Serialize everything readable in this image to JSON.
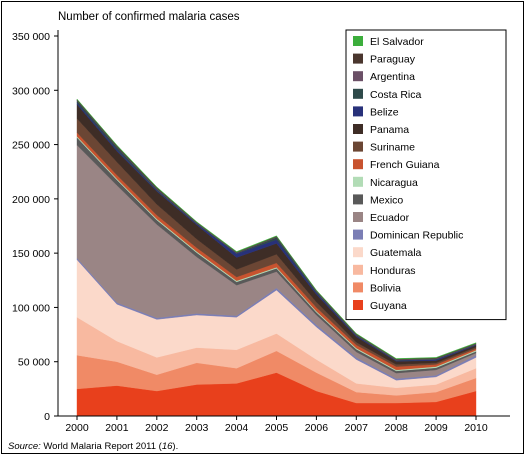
{
  "chart_data": {
    "type": "area",
    "stacked": true,
    "ylabel": "Number of confirmed malaria cases",
    "source_prefix": "Source:",
    "source_text": " World Malaria Report 2011 (",
    "source_ref": "16",
    "source_suffix": ").",
    "ylim": [
      0,
      350000
    ],
    "y_ticks": [
      0,
      50000,
      100000,
      150000,
      200000,
      250000,
      300000,
      350000
    ],
    "y_tick_labels": [
      "0",
      "50 000",
      "100 000",
      "150 000",
      "200 000",
      "250 000",
      "300 000",
      "350 000"
    ],
    "categories": [
      "2000",
      "2001",
      "2002",
      "2003",
      "2004",
      "2005",
      "2006",
      "2007",
      "2008",
      "2009",
      "2010"
    ],
    "legend_position": "top-right",
    "series": [
      {
        "name": "Guyana",
        "color": "#e8401c",
        "values": [
          25000,
          28000,
          23000,
          29000,
          30000,
          40000,
          23000,
          12000,
          12000,
          13000,
          23000
        ]
      },
      {
        "name": "Bolivia",
        "color": "#f08a66",
        "values": [
          31000,
          22000,
          15000,
          20000,
          14000,
          20000,
          17000,
          10000,
          7000,
          9000,
          12000
        ]
      },
      {
        "name": "Honduras",
        "color": "#f8b9a0",
        "values": [
          35000,
          19000,
          16000,
          14000,
          17000,
          16000,
          12000,
          8000,
          7000,
          7000,
          9000
        ]
      },
      {
        "name": "Guatemala",
        "color": "#fbd9ca",
        "values": [
          53000,
          34000,
          35000,
          30000,
          30000,
          40000,
          30000,
          22000,
          7000,
          7000,
          10000
        ]
      },
      {
        "name": "Dominican Republic",
        "color": "#7b7eb5",
        "values": [
          1500,
          1500,
          1500,
          1500,
          1500,
          2000,
          2000,
          2000,
          1500,
          1500,
          2000
        ]
      },
      {
        "name": "Ecuador",
        "color": "#9a8585",
        "values": [
          104000,
          108000,
          86000,
          52000,
          28000,
          15000,
          9000,
          5000,
          5000,
          5000,
          2000
        ]
      },
      {
        "name": "Mexico",
        "color": "#595959",
        "values": [
          7000,
          5000,
          4000,
          4000,
          3000,
          3000,
          2500,
          2500,
          2000,
          2000,
          1500
        ]
      },
      {
        "name": "Nicaragua",
        "color": "#b2dcb6",
        "values": [
          1000,
          1000,
          1000,
          1000,
          1000,
          1000,
          1000,
          1000,
          1000,
          1000,
          1000
        ]
      },
      {
        "name": "French Guiana",
        "color": "#c8532f",
        "values": [
          3500,
          3500,
          3500,
          3500,
          3500,
          4000,
          3500,
          3000,
          3000,
          2000,
          1500
        ]
      },
      {
        "name": "Suriname",
        "color": "#6b4634",
        "values": [
          13000,
          12000,
          10000,
          8000,
          7000,
          8000,
          5000,
          2500,
          2000,
          1500,
          1500
        ]
      },
      {
        "name": "Panama",
        "color": "#3e2d26",
        "values": [
          13000,
          10000,
          12000,
          13000,
          11000,
          10000,
          7000,
          5000,
          3000,
          2000,
          1500
        ]
      },
      {
        "name": "Belize",
        "color": "#28317a",
        "values": [
          1500,
          1500,
          1000,
          1000,
          3500,
          3500,
          1500,
          1000,
          500,
          1000,
          500
        ]
      },
      {
        "name": "Costa Rica",
        "color": "#2e4a4a",
        "values": [
          2000,
          2000,
          1000,
          500,
          500,
          2000,
          1000,
          500,
          500,
          500,
          500
        ]
      },
      {
        "name": "Argentina",
        "color": "#6b5067",
        "values": [
          500,
          500,
          500,
          500,
          500,
          500,
          500,
          500,
          500,
          500,
          500
        ]
      },
      {
        "name": "Paraguay",
        "color": "#4a362e",
        "values": [
          500,
          1000,
          1000,
          500,
          500,
          500,
          500,
          500,
          500,
          500,
          500
        ]
      },
      {
        "name": "El Salvador",
        "color": "#3cae3c",
        "values": [
          500,
          500,
          500,
          500,
          500,
          500,
          500,
          500,
          500,
          500,
          500
        ]
      }
    ]
  }
}
